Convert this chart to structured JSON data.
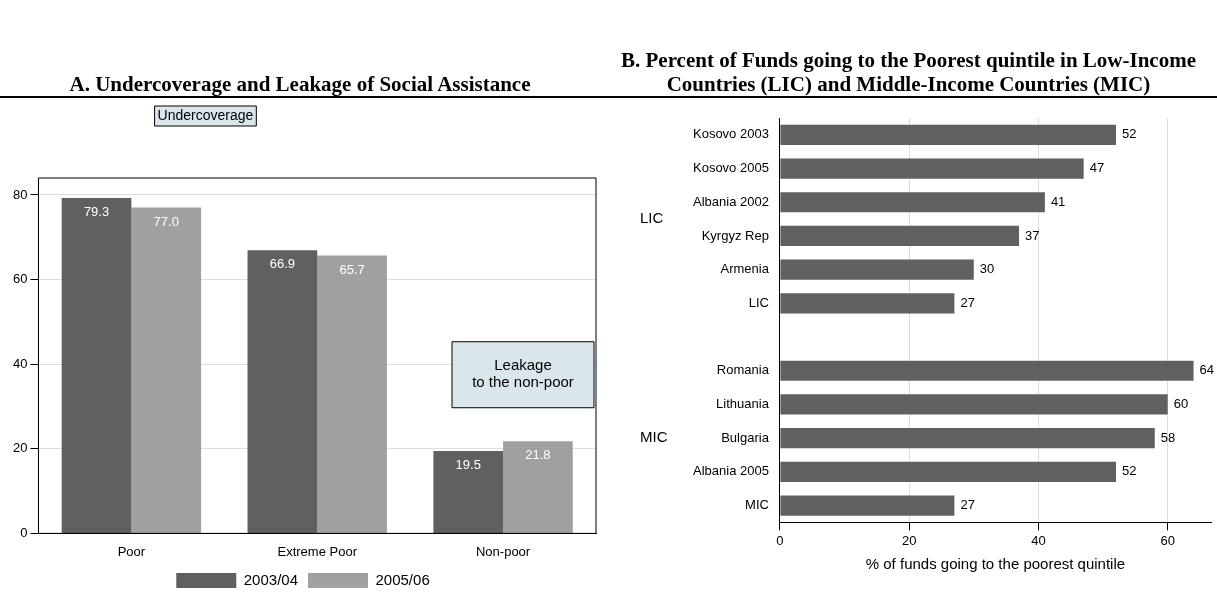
{
  "chart_data": [
    {
      "type": "bar",
      "title": "A.  Undercoverage and Leakage of Social Assistance",
      "categories": [
        "Poor",
        "Extreme Poor",
        "Non-poor"
      ],
      "series": [
        {
          "name": "2003/04",
          "color": "#606060",
          "values": [
            79.3,
            66.9,
            19.5
          ],
          "value_labels": [
            "79.3",
            "66.9",
            "19.5"
          ]
        },
        {
          "name": "2005/06",
          "color": "#a0a0a0",
          "values": [
            77.0,
            65.7,
            21.8
          ],
          "value_labels": [
            "77.0",
            "65.7",
            "21.8"
          ]
        }
      ],
      "ylim": [
        0,
        84
      ],
      "yticks": [
        0,
        20,
        40,
        60,
        80
      ],
      "grid": "y",
      "legend": "bottom",
      "annotations": [
        "Undercoverage",
        "Leakage\nto the non-poor"
      ]
    },
    {
      "type": "bar",
      "orientation": "horizontal",
      "title": "B.  Percent of Funds going to the Poorest quintile in Low-Income Countries (LIC) and Middle-Income Countries (MIC)",
      "xlabel": "% of funds going to the poorest quintile",
      "categories": [
        "Kosovo 2003",
        "Kosovo 2005",
        "Albania 2002",
        "Kyrgyz Rep",
        "Armenia",
        "LIC",
        null,
        "Romania",
        "Lithuania",
        "Bulgaria",
        "Albania 2005",
        "MIC"
      ],
      "values": [
        52,
        47,
        41,
        37,
        30,
        27,
        null,
        64,
        60,
        58,
        52,
        27
      ],
      "color": "#606060",
      "xlim": [
        0,
        66.7
      ],
      "xticks": [
        0,
        20,
        40,
        60
      ],
      "grid": "x",
      "data_labels": true,
      "annotations": [
        "LIC",
        "MIC"
      ]
    }
  ]
}
